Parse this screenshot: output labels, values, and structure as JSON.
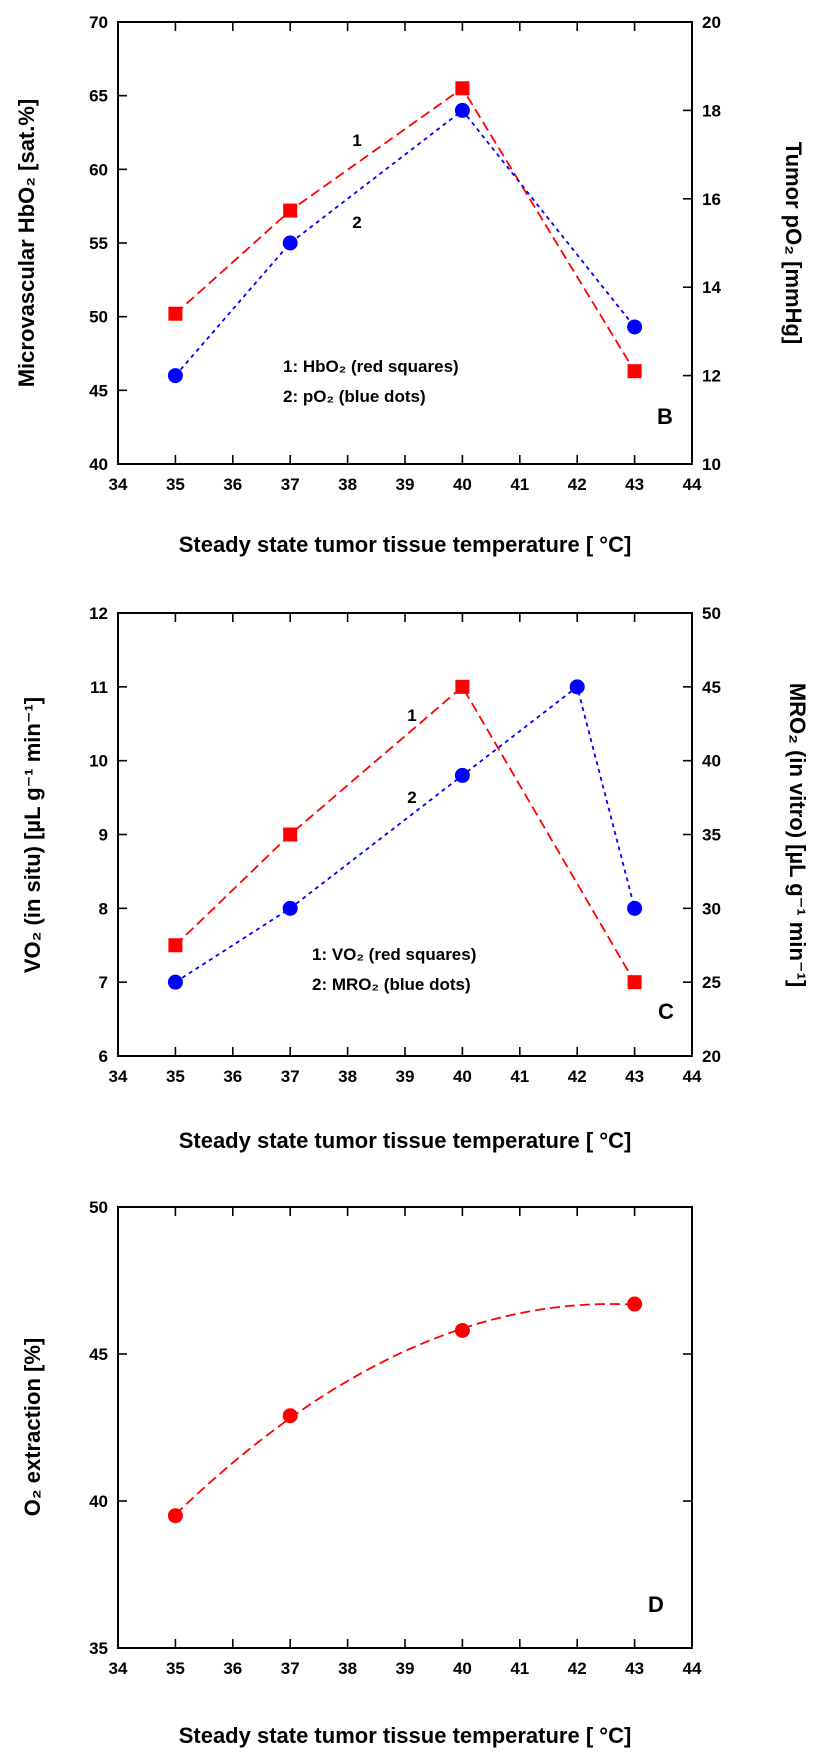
{
  "colors": {
    "red": "#ff0000",
    "blue": "#0000ff",
    "axis": "#000000"
  },
  "chart_data": [
    {
      "id": "B",
      "type": "line",
      "panel_label": "B",
      "title": "",
      "x": [
        35,
        37,
        40,
        43
      ],
      "xlim": [
        34,
        44
      ],
      "xticks": [
        "34",
        "35",
        "36",
        "37",
        "38",
        "39",
        "40",
        "41",
        "42",
        "43",
        "44"
      ],
      "xlabel": "Steady state tumor tissue temperature [ °C]",
      "ylabel": "Microvascular HbO₂ [sat.%]",
      "ylim": [
        40,
        70
      ],
      "yticks": [
        "40",
        "45",
        "50",
        "55",
        "60",
        "65",
        "70"
      ],
      "y2label": "Tumor pO₂ [mmHg]",
      "y2lim": [
        10,
        20
      ],
      "y2ticks": [
        "10",
        "12",
        "14",
        "16",
        "18",
        "20"
      ],
      "series": [
        {
          "label_number": "1",
          "values": [
            50.2,
            57.2,
            65.5,
            46.3
          ],
          "axis": "left",
          "color": "#ff0000",
          "marker": "square",
          "dash": "dashed"
        },
        {
          "label_number": "2",
          "x": [
            35,
            37,
            40,
            43
          ],
          "values": [
            12.0,
            15.0,
            18.0,
            13.1
          ],
          "axis": "right",
          "color": "#0000ff",
          "marker": "circle",
          "dash": "dotted"
        }
      ],
      "legend_lines": [
        "1: HbO₂ (red squares)",
        "2: pO₂ (blue dots)"
      ],
      "legend_position": "bottom-center"
    },
    {
      "id": "C",
      "type": "line",
      "panel_label": "C",
      "title": "",
      "x": [
        35,
        37,
        40,
        43
      ],
      "xlim": [
        34,
        44
      ],
      "xticks": [
        "34",
        "35",
        "36",
        "37",
        "38",
        "39",
        "40",
        "41",
        "42",
        "43",
        "44"
      ],
      "xlabel": "Steady state tumor tissue temperature [ °C]",
      "ylabel": "VO₂ (in situ) [µL g⁻¹ min⁻¹]",
      "ylim": [
        6,
        12
      ],
      "yticks": [
        "6",
        "7",
        "8",
        "9",
        "10",
        "11",
        "12"
      ],
      "y2label": "MRO₂ (in vitro) [µL g⁻¹ min⁻¹]",
      "y2lim": [
        20,
        50
      ],
      "y2ticks": [
        "20",
        "25",
        "30",
        "35",
        "40",
        "45",
        "50"
      ],
      "series": [
        {
          "label_number": "1",
          "x": [
            35,
            37,
            40,
            43
          ],
          "values": [
            7.5,
            9.0,
            11.0,
            7.0
          ],
          "axis": "left",
          "color": "#ff0000",
          "marker": "square",
          "dash": "dashed"
        },
        {
          "label_number": "2",
          "x": [
            35,
            37,
            40,
            42,
            43
          ],
          "values": [
            25,
            30,
            39,
            45,
            30
          ],
          "axis": "right",
          "color": "#0000ff",
          "marker": "circle",
          "dash": "dotted"
        }
      ],
      "legend_lines": [
        "1: VO₂ (red squares)",
        "2: MRO₂ (blue dots)"
      ],
      "legend_position": "bottom-center"
    },
    {
      "id": "D",
      "type": "scatter",
      "panel_label": "D",
      "title": "",
      "x": [
        35,
        37,
        40,
        43
      ],
      "xlim": [
        34,
        44
      ],
      "xticks": [
        "34",
        "35",
        "36",
        "37",
        "38",
        "39",
        "40",
        "41",
        "42",
        "43",
        "44"
      ],
      "xlabel": "Steady state tumor tissue temperature [ °C]",
      "ylabel": "O₂ extraction [%]",
      "ylim": [
        35,
        50
      ],
      "yticks": [
        "35",
        "40",
        "45",
        "50"
      ],
      "series": [
        {
          "values": [
            39.5,
            42.9,
            45.8,
            46.7
          ],
          "color": "#ff0000",
          "marker": "circle",
          "fit": "quadratic",
          "dash": "dashed"
        }
      ]
    }
  ]
}
